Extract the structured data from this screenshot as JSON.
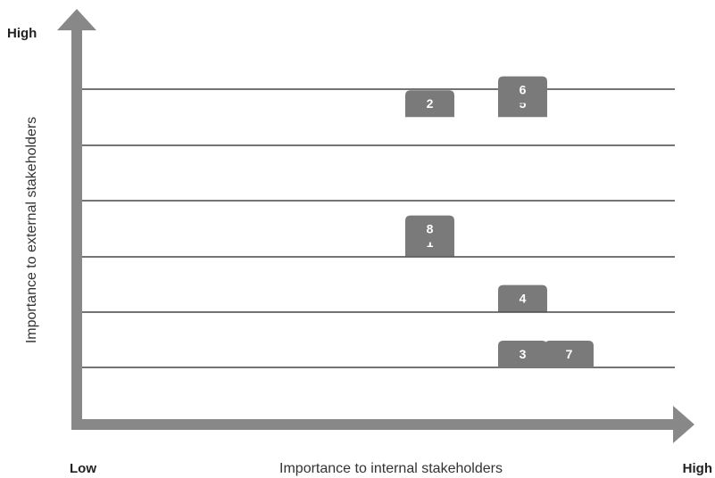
{
  "chart_data": {
    "type": "scatter",
    "title": "",
    "xlabel": "Importance to internal stakeholders",
    "ylabel": "Importance to external stakeholders",
    "x_low_label": "Low",
    "x_high_label": "High",
    "y_high_label": "High",
    "grid": "horizontal lines",
    "colors": {
      "axis": "#888888",
      "grid": "#222222",
      "tag": "#7a7a7a",
      "text": "#222222"
    },
    "points": [
      {
        "label": "1",
        "x": 8,
        "y": 9
      },
      {
        "label": "2",
        "x": 8,
        "y": 19
      },
      {
        "label": "3",
        "x": 10,
        "y": 1
      },
      {
        "label": "4",
        "x": 10,
        "y": 5
      },
      {
        "label": "5",
        "x": 10,
        "y": 19
      },
      {
        "label": "6",
        "x": 10,
        "y": 20
      },
      {
        "label": "7",
        "x": 11,
        "y": 1
      },
      {
        "label": "8",
        "x": 8,
        "y": 10
      }
    ]
  }
}
